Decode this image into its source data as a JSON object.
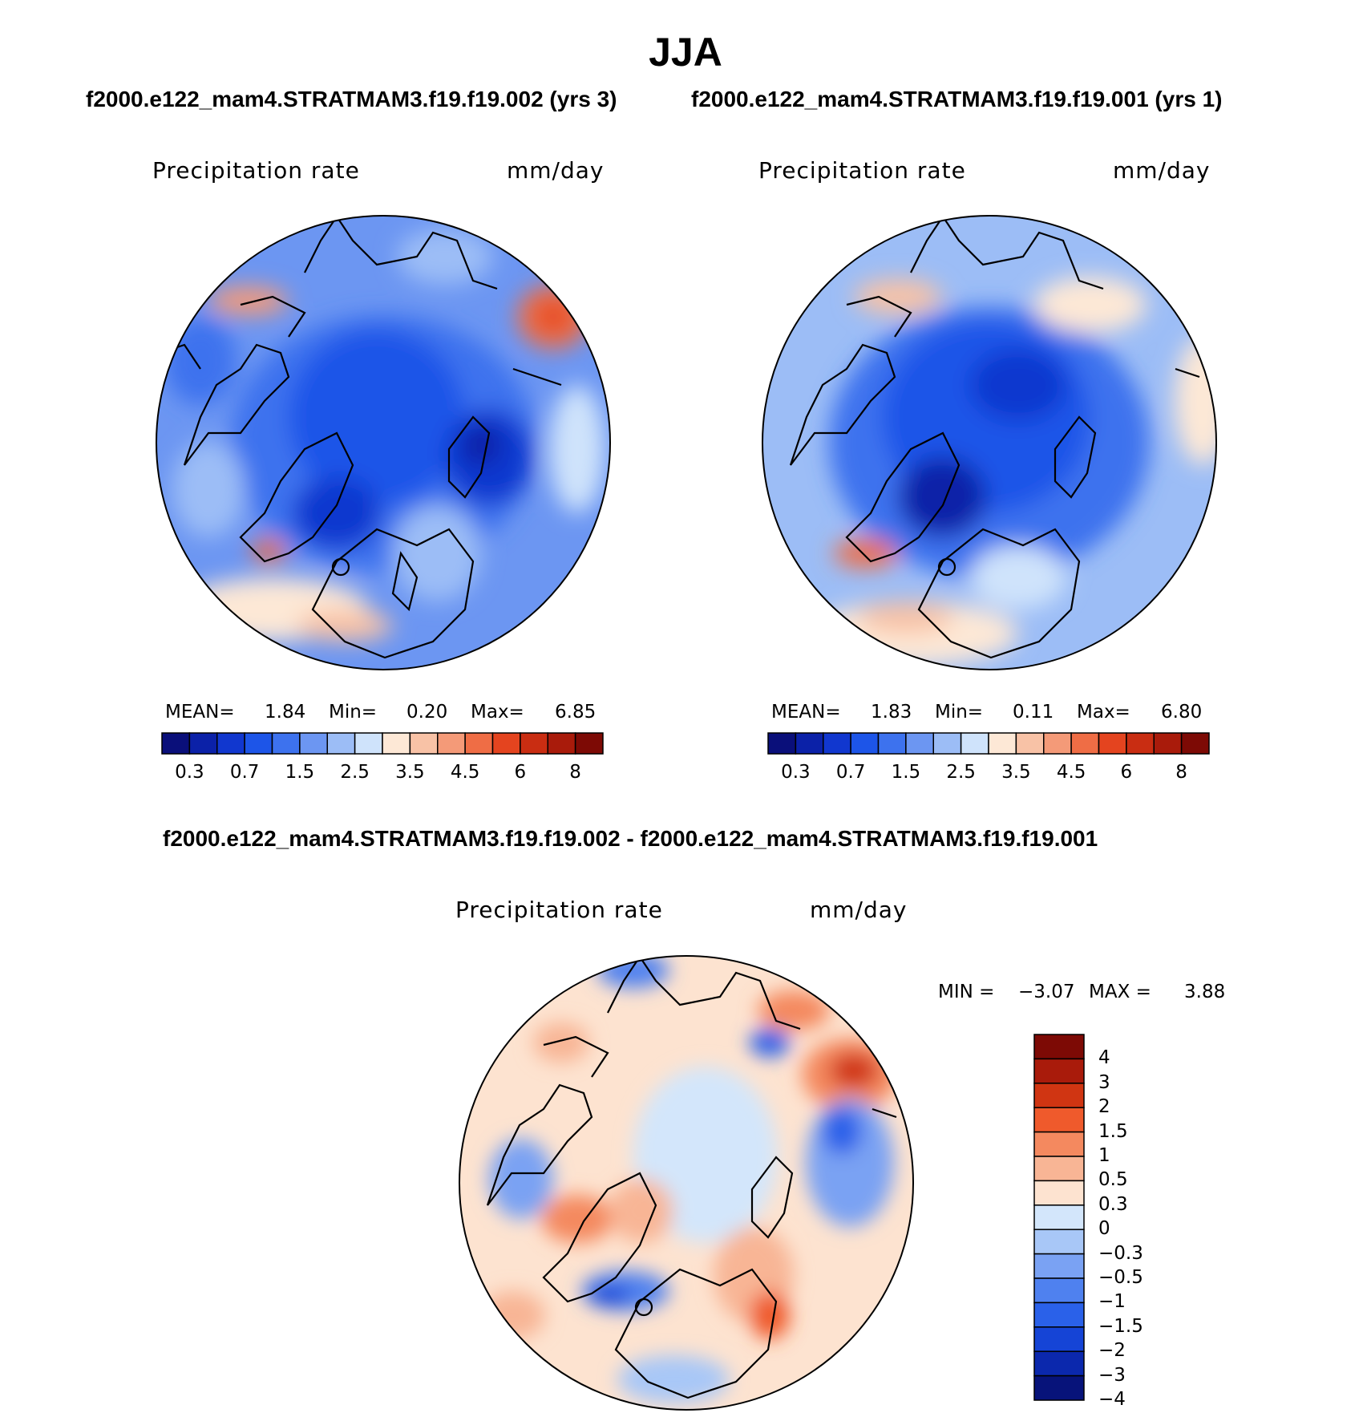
{
  "header": {
    "season": "JJA",
    "top_subtitle_left": "f2000.e122_mam4.STRATMAM3.f19.f19.002 (yrs 3)",
    "top_subtitle_right": "f2000.e122_mam4.STRATMAM3.f19.f19.001 (yrs 1)",
    "bottom_subtitle": "f2000.e122_mam4.STRATMAM3.f19.f19.002 - f2000.e122_mam4.STRATMAM3.f19.f19.001"
  },
  "chart_data": [
    {
      "type": "polar-contour-map",
      "id": "case1",
      "title": "Precipitation rate",
      "units": "mm/day",
      "stats": {
        "mean_label": "MEAN=",
        "mean": "1.84",
        "min_label": "Min=",
        "min": "0.20",
        "max_label": "Max=",
        "max": "6.85"
      },
      "colorbar": {
        "orientation": "horizontal",
        "tick_labels": [
          "0.3",
          "0.7",
          "1.5",
          "2.5",
          "3.5",
          "4.5",
          "6",
          "8"
        ],
        "colors": [
          "#0a0f7a",
          "#0b21a8",
          "#1137cf",
          "#1d55e8",
          "#3d72ee",
          "#6c96f2",
          "#9cbdf6",
          "#cfe3fb",
          "#fde8d6",
          "#f8c2a6",
          "#f49a78",
          "#ef6d45",
          "#e4441f",
          "#c92d12",
          "#a91b0b",
          "#7d0a05"
        ]
      }
    },
    {
      "type": "polar-contour-map",
      "id": "case2",
      "title": "Precipitation rate",
      "units": "mm/day",
      "stats": {
        "mean_label": "MEAN=",
        "mean": "1.83",
        "min_label": "Min=",
        "min": "0.11",
        "max_label": "Max=",
        "max": "6.80"
      },
      "colorbar": {
        "orientation": "horizontal",
        "tick_labels": [
          "0.3",
          "0.7",
          "1.5",
          "2.5",
          "3.5",
          "4.5",
          "6",
          "8"
        ],
        "colors": [
          "#0a0f7a",
          "#0b21a8",
          "#1137cf",
          "#1d55e8",
          "#3d72ee",
          "#6c96f2",
          "#9cbdf6",
          "#cfe3fb",
          "#fde8d6",
          "#f8c2a6",
          "#f49a78",
          "#ef6d45",
          "#e4441f",
          "#c92d12",
          "#a91b0b",
          "#7d0a05"
        ]
      }
    },
    {
      "type": "polar-contour-map",
      "id": "diff",
      "title": "Precipitation rate",
      "units": "mm/day",
      "stats": {
        "min_label": "MIN =",
        "min": "−3.07",
        "max_label": "MAX =",
        "max": "3.88"
      },
      "colorbar": {
        "orientation": "vertical",
        "tick_labels": [
          "4",
          "3",
          "2",
          "1.5",
          "1",
          "0.5",
          "0.3",
          "0",
          "−0.3",
          "−0.5",
          "−1",
          "−1.5",
          "−2",
          "−3",
          "−4"
        ],
        "colors": [
          "#7d0a05",
          "#a91b0b",
          "#d03512",
          "#ef5a2c",
          "#f4895f",
          "#f8b595",
          "#fde3d0",
          "#d3e6fb",
          "#a8c7f7",
          "#7aa2f3",
          "#4f81ef",
          "#2a61e9",
          "#1544d6",
          "#0b28ad",
          "#07137a"
        ]
      }
    }
  ]
}
